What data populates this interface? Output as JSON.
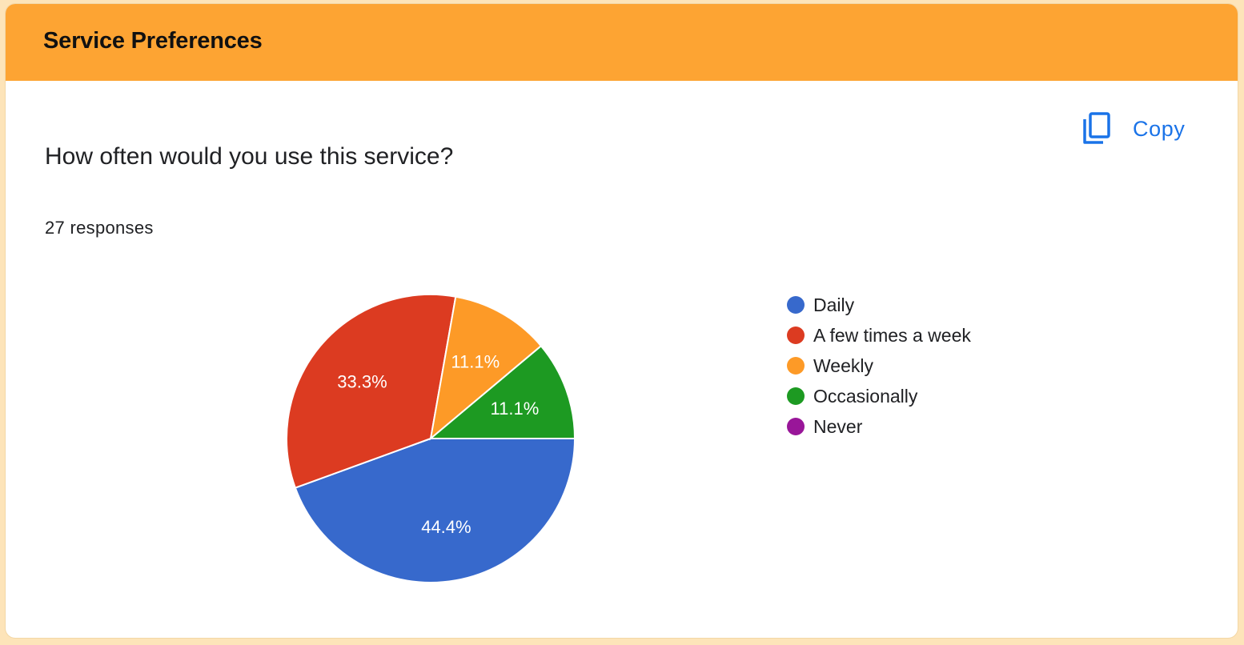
{
  "header": {
    "title": "Service Preferences"
  },
  "question": {
    "text": "How often would you use this service?",
    "responses": "27 responses"
  },
  "toolbar": {
    "copy_label": "Copy",
    "copy_icon": "copy-icon"
  },
  "colors": {
    "header_bg": "#fda433",
    "page_bg": "#fde4b9",
    "accent": "#1a73e8"
  },
  "chart_data": {
    "type": "pie",
    "total_responses": 27,
    "categories": [
      "Daily",
      "A few times a week",
      "Weekly",
      "Occasionally",
      "Never"
    ],
    "values": [
      44.4,
      33.3,
      11.1,
      11.1,
      0
    ],
    "labels": [
      "44.4%",
      "33.3%",
      "11.1%",
      "11.1%",
      ""
    ],
    "colors": [
      "#3769cc",
      "#dc3b21",
      "#fd9a27",
      "#1d9a22",
      "#991699"
    ],
    "legend_position": "right"
  }
}
